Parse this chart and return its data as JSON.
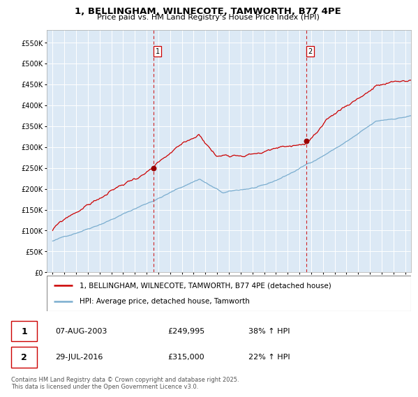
{
  "title_line1": "1, BELLINGHAM, WILNECOTE, TAMWORTH, B77 4PE",
  "title_line2": "Price paid vs. HM Land Registry's House Price Index (HPI)",
  "legend_line1": "1, BELLINGHAM, WILNECOTE, TAMWORTH, B77 4PE (detached house)",
  "legend_line2": "HPI: Average price, detached house, Tamworth",
  "transaction1_label": "1",
  "transaction1_date": "07-AUG-2003",
  "transaction1_price": "£249,995",
  "transaction1_hpi": "38% ↑ HPI",
  "transaction1_year": 2003.6,
  "transaction1_value": 249995,
  "transaction2_label": "2",
  "transaction2_date": "29-JUL-2016",
  "transaction2_price": "£315,000",
  "transaction2_hpi": "22% ↑ HPI",
  "transaction2_year": 2016.58,
  "transaction2_value": 315000,
  "ylim_min": 0,
  "ylim_max": 580000,
  "xlim_min": 1994.5,
  "xlim_max": 2025.5,
  "background_color": "#ffffff",
  "plot_bg_color": "#dce9f5",
  "grid_color": "#ffffff",
  "red_line_color": "#cc0000",
  "blue_line_color": "#7aadcf",
  "dashed_line_color": "#cc0000",
  "footer_text": "Contains HM Land Registry data © Crown copyright and database right 2025.\nThis data is licensed under the Open Government Licence v3.0.",
  "title_fontsize": 9.5,
  "subtitle_fontsize": 8,
  "tick_fontsize": 7,
  "legend_fontsize": 7.5,
  "footer_fontsize": 6
}
